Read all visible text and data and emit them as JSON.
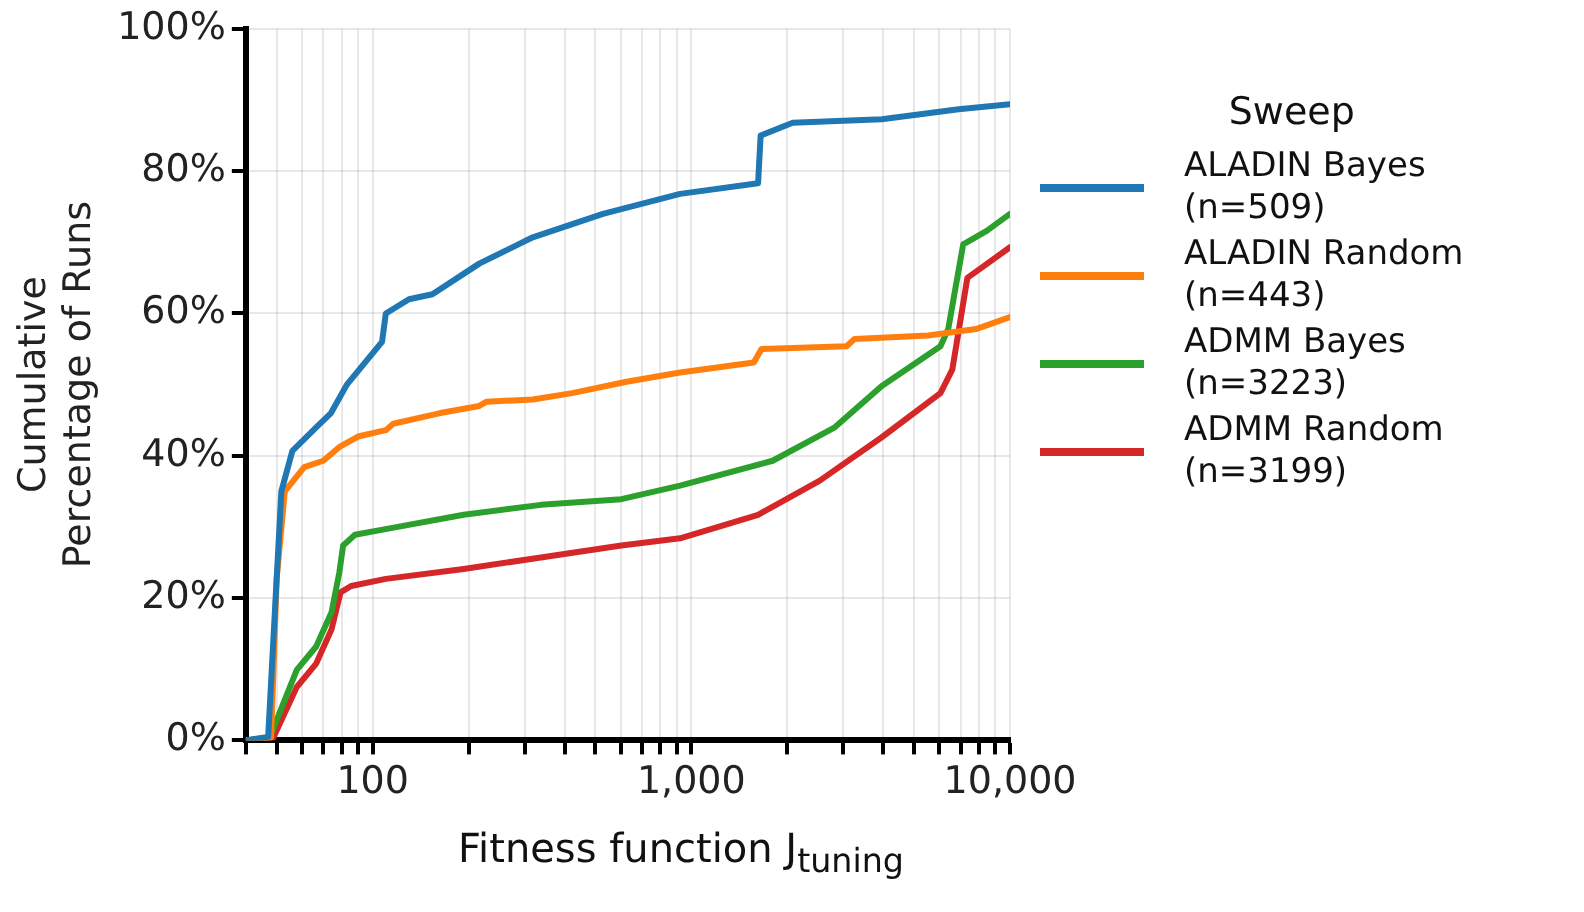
{
  "chart_data": {
    "type": "line",
    "xlabel": "Fitness function J$_{tuning}$",
    "ylabel": "Cumulative\nPercentage of Runs",
    "legend_title": "Sweep",
    "legend": "right",
    "grid": true,
    "log": "x",
    "marker": "none",
    "line_style": "solid",
    "xlim": [
      40,
      10000
    ],
    "ylim": [
      0,
      100
    ],
    "xticks": [
      {
        "value": 40,
        "label": null
      },
      {
        "value": 50,
        "label": null
      },
      {
        "value": 60,
        "label": null
      },
      {
        "value": 70,
        "label": null
      },
      {
        "value": 80,
        "label": null
      },
      {
        "value": 90,
        "label": null
      },
      {
        "value": 100,
        "label": "100"
      },
      {
        "value": 200,
        "label": null
      },
      {
        "value": 300,
        "label": null
      },
      {
        "value": 400,
        "label": null
      },
      {
        "value": 500,
        "label": null
      },
      {
        "value": 600,
        "label": null
      },
      {
        "value": 700,
        "label": null
      },
      {
        "value": 800,
        "label": null
      },
      {
        "value": 900,
        "label": null
      },
      {
        "value": 1000,
        "label": "1,000"
      },
      {
        "value": 2000,
        "label": null
      },
      {
        "value": 3000,
        "label": null
      },
      {
        "value": 4000,
        "label": null
      },
      {
        "value": 5000,
        "label": null
      },
      {
        "value": 6000,
        "label": null
      },
      {
        "value": 7000,
        "label": null
      },
      {
        "value": 8000,
        "label": null
      },
      {
        "value": 9000,
        "label": null
      },
      {
        "value": 10000,
        "label": "10,000"
      }
    ],
    "yticks": [
      {
        "value": 0,
        "label": "0%"
      },
      {
        "value": 20,
        "label": "20%"
      },
      {
        "value": 40,
        "label": "40%"
      },
      {
        "value": 60,
        "label": "60%"
      },
      {
        "value": 80,
        "label": "80%"
      },
      {
        "value": 100,
        "label": "100%"
      }
    ],
    "series": [
      {
        "name": "ALADIN Bayes\n(n=509)",
        "color": "#1f77b4",
        "x": [
          40,
          47,
          51.7,
          56,
          66.5,
          74,
          83,
          107,
          110,
          130,
          154,
          216,
          318,
          528,
          922,
          1620,
          1650,
          2080,
          3960,
          6900,
          10000
        ],
        "values": [
          0,
          0.5,
          35,
          40.7,
          44,
          46,
          50,
          56,
          60,
          62,
          62.7,
          67,
          70.7,
          74,
          76.8,
          78.3,
          85,
          86.8,
          87.3,
          88.7,
          89.4
        ]
      },
      {
        "name": "ALADIN Random\n(n=443)",
        "color": "#ff7f0e",
        "x": [
          40,
          48,
          50,
          53,
          61,
          70,
          79,
          90,
          110,
          116,
          163,
          216,
          228,
          318,
          423,
          626,
          922,
          1570,
          1660,
          3070,
          3250,
          5540,
          7820,
          10000
        ],
        "values": [
          0,
          0.4,
          22.8,
          35,
          38.4,
          39.3,
          41.3,
          42.7,
          43.6,
          44.5,
          46,
          47,
          47.6,
          47.9,
          48.8,
          50.4,
          51.7,
          53.1,
          55,
          55.4,
          56.4,
          56.9,
          57.8,
          59.5
        ]
      },
      {
        "name": "ADMM Bayes\n(n=3223)",
        "color": "#2ca02c",
        "x": [
          40,
          47.5,
          57.8,
          66.5,
          74.3,
          78.6,
          80.8,
          88,
          113,
          193,
          337,
          603,
          922,
          1800,
          2820,
          3960,
          6050,
          6400,
          7130,
          8450,
          10000
        ],
        "values": [
          0,
          0.4,
          9.9,
          13.2,
          18,
          23.6,
          27.4,
          28.9,
          29.8,
          31.7,
          33.1,
          33.9,
          35.8,
          39.3,
          44,
          49.8,
          55.4,
          57.8,
          69.7,
          71.6,
          74
        ]
      },
      {
        "name": "ADMM Random\n(n=3199)",
        "color": "#d62728",
        "x": [
          40,
          48.8,
          57.8,
          66.5,
          74.3,
          79.3,
          85.6,
          110,
          193,
          337,
          603,
          922,
          1620,
          2530,
          3960,
          6050,
          6590,
          7350,
          10000
        ],
        "values": [
          0,
          0.4,
          7.5,
          10.8,
          15.6,
          20.8,
          21.7,
          22.7,
          24.1,
          25.7,
          27.4,
          28.4,
          31.7,
          36.5,
          42.6,
          48.8,
          52.1,
          65,
          69.3
        ]
      }
    ]
  }
}
